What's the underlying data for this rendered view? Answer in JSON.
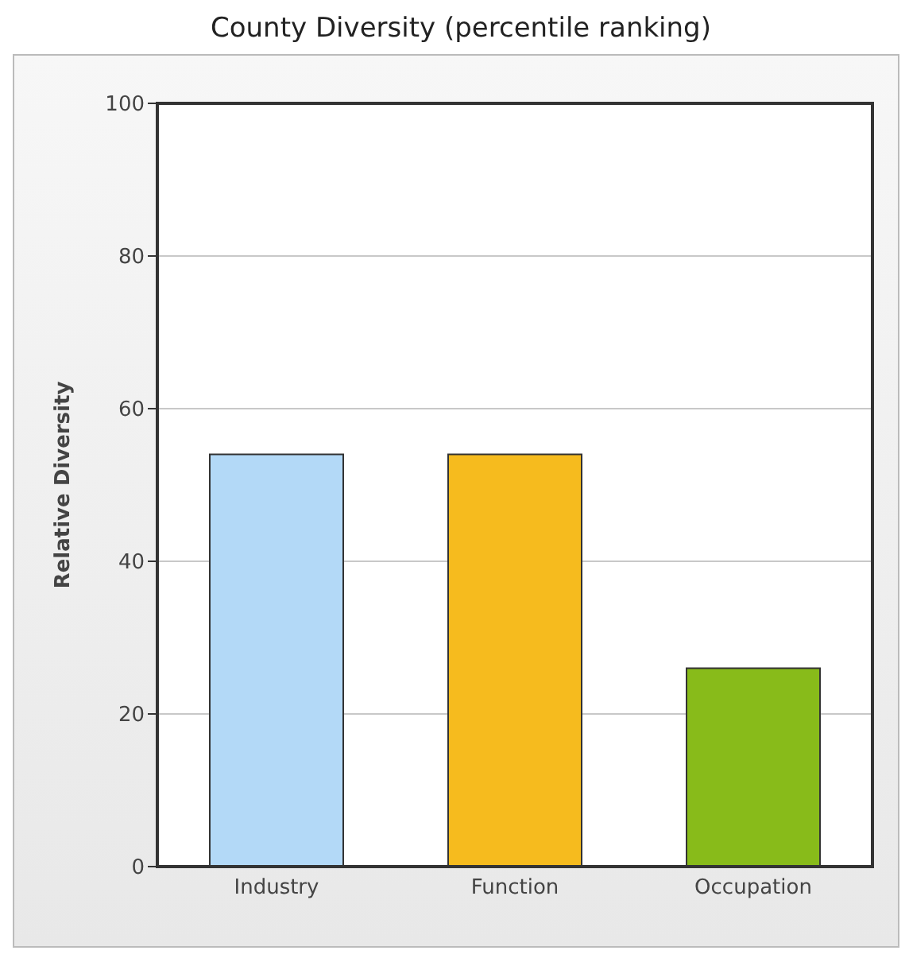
{
  "chart_data": {
    "type": "bar",
    "title": "County Diversity (percentile ranking)",
    "ylabel": "Relative Diversity",
    "categories": [
      "Industry",
      "Function",
      "Occupation"
    ],
    "values": [
      54,
      54,
      26
    ],
    "colors": [
      "#b3d9f7",
      "#f6bb1e",
      "#88bb1a"
    ],
    "ylim": [
      0,
      100
    ],
    "yticks": [
      0,
      20,
      40,
      60,
      80,
      100
    ],
    "grid": "y"
  }
}
